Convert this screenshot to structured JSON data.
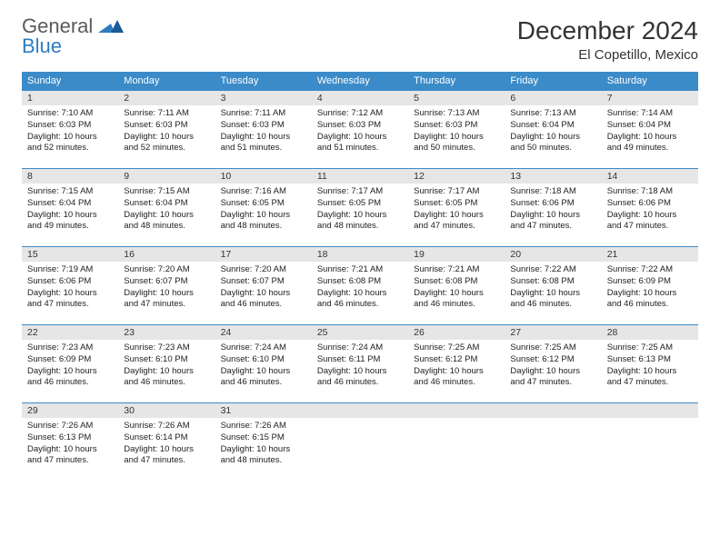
{
  "brand": {
    "word1": "General",
    "word2": "Blue"
  },
  "title": {
    "month": "December 2024",
    "location": "El Copetillo, Mexico"
  },
  "colors": {
    "header_bg": "#3b8bc8",
    "header_text": "#ffffff",
    "daynum_bg": "#e6e6e6",
    "rule": "#3b8bc8",
    "text": "#333333",
    "logo_gray": "#5a5a5a",
    "logo_blue": "#2f7bbf"
  },
  "fonts": {
    "title_pt": 28,
    "location_pt": 15,
    "dow_pt": 11,
    "daynum_pt": 10.5,
    "body_pt": 9.5
  },
  "dow": [
    "Sunday",
    "Monday",
    "Tuesday",
    "Wednesday",
    "Thursday",
    "Friday",
    "Saturday"
  ],
  "days": [
    {
      "n": 1,
      "sr": "7:10 AM",
      "ss": "6:03 PM",
      "dl": "10 hours and 52 minutes."
    },
    {
      "n": 2,
      "sr": "7:11 AM",
      "ss": "6:03 PM",
      "dl": "10 hours and 52 minutes."
    },
    {
      "n": 3,
      "sr": "7:11 AM",
      "ss": "6:03 PM",
      "dl": "10 hours and 51 minutes."
    },
    {
      "n": 4,
      "sr": "7:12 AM",
      "ss": "6:03 PM",
      "dl": "10 hours and 51 minutes."
    },
    {
      "n": 5,
      "sr": "7:13 AM",
      "ss": "6:03 PM",
      "dl": "10 hours and 50 minutes."
    },
    {
      "n": 6,
      "sr": "7:13 AM",
      "ss": "6:04 PM",
      "dl": "10 hours and 50 minutes."
    },
    {
      "n": 7,
      "sr": "7:14 AM",
      "ss": "6:04 PM",
      "dl": "10 hours and 49 minutes."
    },
    {
      "n": 8,
      "sr": "7:15 AM",
      "ss": "6:04 PM",
      "dl": "10 hours and 49 minutes."
    },
    {
      "n": 9,
      "sr": "7:15 AM",
      "ss": "6:04 PM",
      "dl": "10 hours and 48 minutes."
    },
    {
      "n": 10,
      "sr": "7:16 AM",
      "ss": "6:05 PM",
      "dl": "10 hours and 48 minutes."
    },
    {
      "n": 11,
      "sr": "7:17 AM",
      "ss": "6:05 PM",
      "dl": "10 hours and 48 minutes."
    },
    {
      "n": 12,
      "sr": "7:17 AM",
      "ss": "6:05 PM",
      "dl": "10 hours and 47 minutes."
    },
    {
      "n": 13,
      "sr": "7:18 AM",
      "ss": "6:06 PM",
      "dl": "10 hours and 47 minutes."
    },
    {
      "n": 14,
      "sr": "7:18 AM",
      "ss": "6:06 PM",
      "dl": "10 hours and 47 minutes."
    },
    {
      "n": 15,
      "sr": "7:19 AM",
      "ss": "6:06 PM",
      "dl": "10 hours and 47 minutes."
    },
    {
      "n": 16,
      "sr": "7:20 AM",
      "ss": "6:07 PM",
      "dl": "10 hours and 47 minutes."
    },
    {
      "n": 17,
      "sr": "7:20 AM",
      "ss": "6:07 PM",
      "dl": "10 hours and 46 minutes."
    },
    {
      "n": 18,
      "sr": "7:21 AM",
      "ss": "6:08 PM",
      "dl": "10 hours and 46 minutes."
    },
    {
      "n": 19,
      "sr": "7:21 AM",
      "ss": "6:08 PM",
      "dl": "10 hours and 46 minutes."
    },
    {
      "n": 20,
      "sr": "7:22 AM",
      "ss": "6:08 PM",
      "dl": "10 hours and 46 minutes."
    },
    {
      "n": 21,
      "sr": "7:22 AM",
      "ss": "6:09 PM",
      "dl": "10 hours and 46 minutes."
    },
    {
      "n": 22,
      "sr": "7:23 AM",
      "ss": "6:09 PM",
      "dl": "10 hours and 46 minutes."
    },
    {
      "n": 23,
      "sr": "7:23 AM",
      "ss": "6:10 PM",
      "dl": "10 hours and 46 minutes."
    },
    {
      "n": 24,
      "sr": "7:24 AM",
      "ss": "6:10 PM",
      "dl": "10 hours and 46 minutes."
    },
    {
      "n": 25,
      "sr": "7:24 AM",
      "ss": "6:11 PM",
      "dl": "10 hours and 46 minutes."
    },
    {
      "n": 26,
      "sr": "7:25 AM",
      "ss": "6:12 PM",
      "dl": "10 hours and 46 minutes."
    },
    {
      "n": 27,
      "sr": "7:25 AM",
      "ss": "6:12 PM",
      "dl": "10 hours and 47 minutes."
    },
    {
      "n": 28,
      "sr": "7:25 AM",
      "ss": "6:13 PM",
      "dl": "10 hours and 47 minutes."
    },
    {
      "n": 29,
      "sr": "7:26 AM",
      "ss": "6:13 PM",
      "dl": "10 hours and 47 minutes."
    },
    {
      "n": 30,
      "sr": "7:26 AM",
      "ss": "6:14 PM",
      "dl": "10 hours and 47 minutes."
    },
    {
      "n": 31,
      "sr": "7:26 AM",
      "ss": "6:15 PM",
      "dl": "10 hours and 48 minutes."
    }
  ],
  "labels": {
    "sunrise": "Sunrise:",
    "sunset": "Sunset:",
    "daylight": "Daylight:"
  },
  "layout": {
    "first_weekday_index": 0,
    "weeks": 5,
    "cols": 7
  }
}
